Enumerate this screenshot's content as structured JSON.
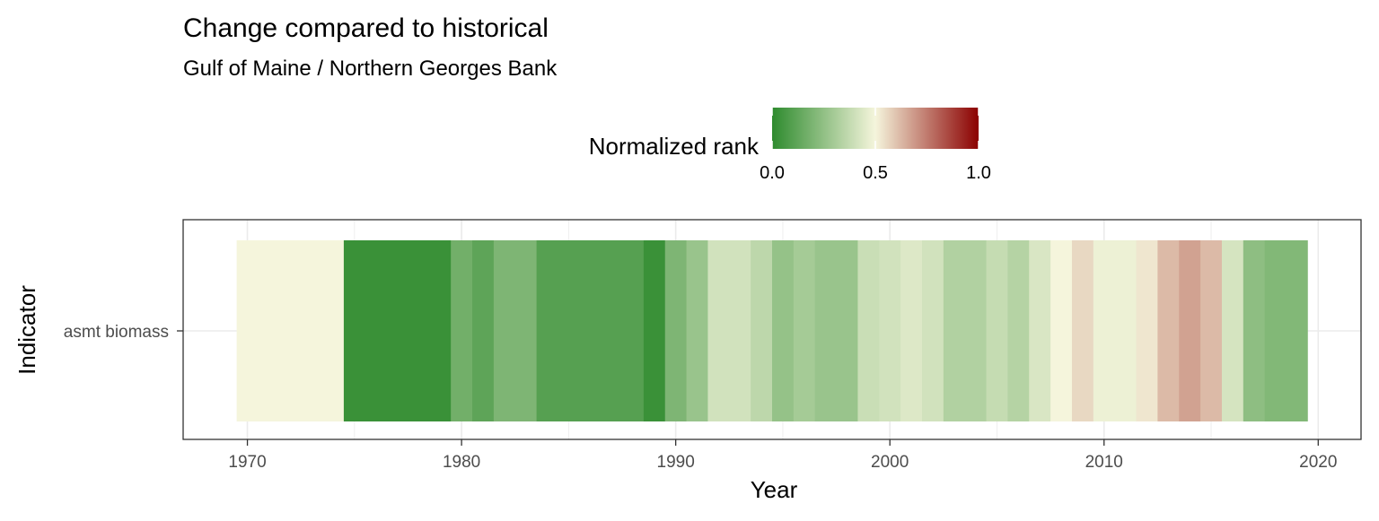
{
  "chart_data": {
    "type": "heatmap",
    "title": "Change compared to historical",
    "subtitle": "Gulf of Maine / Northern Georges Bank",
    "xlabel": "Year",
    "ylabel": "Indicator",
    "xlim": [
      1967,
      2022
    ],
    "x_ticks": [
      "1970",
      "1980",
      "1990",
      "2000",
      "2010",
      "2020"
    ],
    "x_tick_values": [
      1970,
      1980,
      1990,
      2000,
      2010,
      2020
    ],
    "rows": [
      "asmt biomass"
    ],
    "grid": true,
    "legend": {
      "title": "Normalized rank",
      "placement": "top",
      "ticks": [
        "0.0",
        "0.5",
        "1.0"
      ],
      "tick_values": [
        0,
        0.5,
        1
      ],
      "colors": {
        "low": "#2e8b2e",
        "mid": "#f5f5dc",
        "high": "#8b0000"
      }
    },
    "series": [
      {
        "row": "asmt biomass",
        "cells": [
          {
            "start": 1969.5,
            "end": 1974.5,
            "value": 0.5
          },
          {
            "start": 1974.5,
            "end": 1979.5,
            "value": 0.03
          },
          {
            "start": 1979.5,
            "end": 1980.5,
            "value": 0.17
          },
          {
            "start": 1980.5,
            "end": 1981.5,
            "value": 0.12
          },
          {
            "start": 1981.5,
            "end": 1983.5,
            "value": 0.2
          },
          {
            "start": 1983.5,
            "end": 1988.5,
            "value": 0.1
          },
          {
            "start": 1988.5,
            "end": 1989.5,
            "value": 0.03
          },
          {
            "start": 1989.5,
            "end": 1990.5,
            "value": 0.2
          },
          {
            "start": 1990.5,
            "end": 1991.5,
            "value": 0.27
          },
          {
            "start": 1991.5,
            "end": 1993.5,
            "value": 0.41
          },
          {
            "start": 1993.5,
            "end": 1994.5,
            "value": 0.36
          },
          {
            "start": 1994.5,
            "end": 1995.5,
            "value": 0.26
          },
          {
            "start": 1995.5,
            "end": 1996.5,
            "value": 0.3
          },
          {
            "start": 1996.5,
            "end": 1998.5,
            "value": 0.27
          },
          {
            "start": 1998.5,
            "end": 1999.5,
            "value": 0.39
          },
          {
            "start": 1999.5,
            "end": 2000.5,
            "value": 0.41
          },
          {
            "start": 2000.5,
            "end": 2001.5,
            "value": 0.44
          },
          {
            "start": 2001.5,
            "end": 2002.5,
            "value": 0.41
          },
          {
            "start": 2002.5,
            "end": 2004.5,
            "value": 0.33
          },
          {
            "start": 2004.5,
            "end": 2005.5,
            "value": 0.38
          },
          {
            "start": 2005.5,
            "end": 2006.5,
            "value": 0.34
          },
          {
            "start": 2006.5,
            "end": 2007.5,
            "value": 0.43
          },
          {
            "start": 2007.5,
            "end": 2008.5,
            "value": 0.5
          },
          {
            "start": 2008.5,
            "end": 2009.5,
            "value": 0.56
          },
          {
            "start": 2009.5,
            "end": 2011.5,
            "value": 0.48
          },
          {
            "start": 2011.5,
            "end": 2012.5,
            "value": 0.53
          },
          {
            "start": 2012.5,
            "end": 2013.5,
            "value": 0.62
          },
          {
            "start": 2013.5,
            "end": 2014.5,
            "value": 0.67
          },
          {
            "start": 2014.5,
            "end": 2015.5,
            "value": 0.62
          },
          {
            "start": 2015.5,
            "end": 2016.5,
            "value": 0.42
          },
          {
            "start": 2016.5,
            "end": 2017.5,
            "value": 0.24
          },
          {
            "start": 2017.5,
            "end": 2019.5,
            "value": 0.21
          }
        ]
      }
    ]
  }
}
